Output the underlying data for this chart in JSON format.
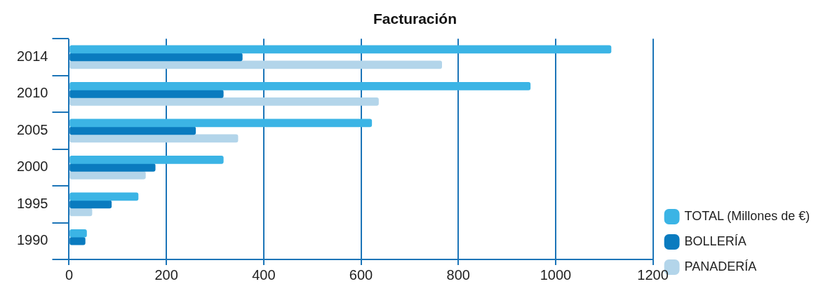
{
  "chart_data": {
    "type": "bar",
    "orientation": "horizontal",
    "title": "Facturación",
    "categories": [
      "2014",
      "2010",
      "2005",
      "2000",
      "1995",
      "1990"
    ],
    "series": [
      {
        "name": "TOTAL (Millones de €)",
        "color": "#3bb4e5",
        "values": [
          1114,
          948,
          622,
          317,
          142,
          36
        ]
      },
      {
        "name": "BOLLERÍA",
        "color": "#0a7bbf",
        "values": [
          356,
          317,
          260,
          177,
          87,
          33
        ]
      },
      {
        "name": "PANADERÍA",
        "color": "#b3d5ea",
        "values": [
          766,
          636,
          347,
          157,
          47,
          null
        ]
      }
    ],
    "xlim": [
      0,
      1200
    ],
    "xticks": [
      0,
      200,
      400,
      600,
      800,
      1000,
      1200
    ],
    "grid": "x",
    "legend": "right"
  }
}
